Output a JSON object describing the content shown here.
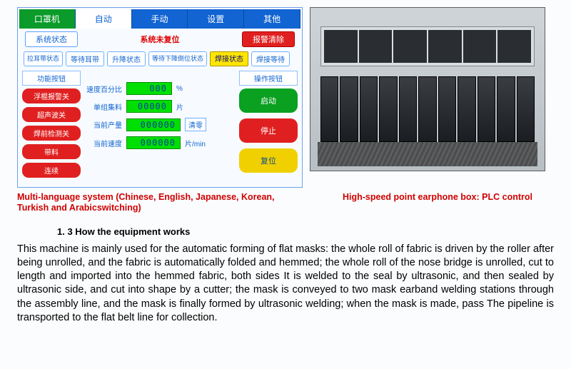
{
  "tabs": {
    "t0": "口罩机",
    "t1": "自动",
    "t2": "手动",
    "t3": "设置",
    "t4": "其他"
  },
  "status": {
    "sys_status": "系统状态",
    "not_reset": "系统未复位",
    "alarm_clear": "报警清除"
  },
  "sub": {
    "earband_status": "拉耳带状态",
    "wait_ear": "等待耳带",
    "lift_status": "升降状态",
    "wait_down": "等待下降倒位状态",
    "weld_status": "焊接状态",
    "weld_wait": "焊接等待"
  },
  "left": {
    "hdr": "功能按钮",
    "b1": "浮棍报警关",
    "b2": "超声波关",
    "b3": "焊前检测关",
    "b4": "带料",
    "b5": "连续"
  },
  "data": {
    "r1_lbl": "速度百分比",
    "r1_val": "000",
    "r1_unit": "%",
    "r2_lbl": "单组集料",
    "r2_val": "00000",
    "r2_unit": "片",
    "r3_lbl": "当前产量",
    "r3_val": "000000",
    "clear": "清零",
    "r4_lbl": "当前速度",
    "r4_val": "000000",
    "r4_unit": "片/min"
  },
  "right": {
    "hdr": "操作按钮",
    "start": "启动",
    "stop": "停止",
    "reset": "复位"
  },
  "captions": {
    "c1": "Multi-language system (Chinese, English, Japanese, Korean, Turkish and Arabicswitching)",
    "c2": "High-speed point earphone box: PLC control"
  },
  "section": "1. 3  How the equipment works",
  "body": "This machine is mainly used for the automatic forming of flat masks: the whole roll of fabric is driven by the roller after being unrolled, and the fabric is automatically folded and hemmed; the whole roll of the nose bridge is unrolled, cut to length and imported into the hemmed fabric, both sides It is welded to the seal by ultrasonic, and then sealed by ultrasonic side, and cut into shape by a cutter; the mask is conveyed to two mask earband welding stations through the assembly line, and the mask is finally formed by ultrasonic welding; when the mask is made, pass The pipeline is transported to the flat belt line for collection."
}
